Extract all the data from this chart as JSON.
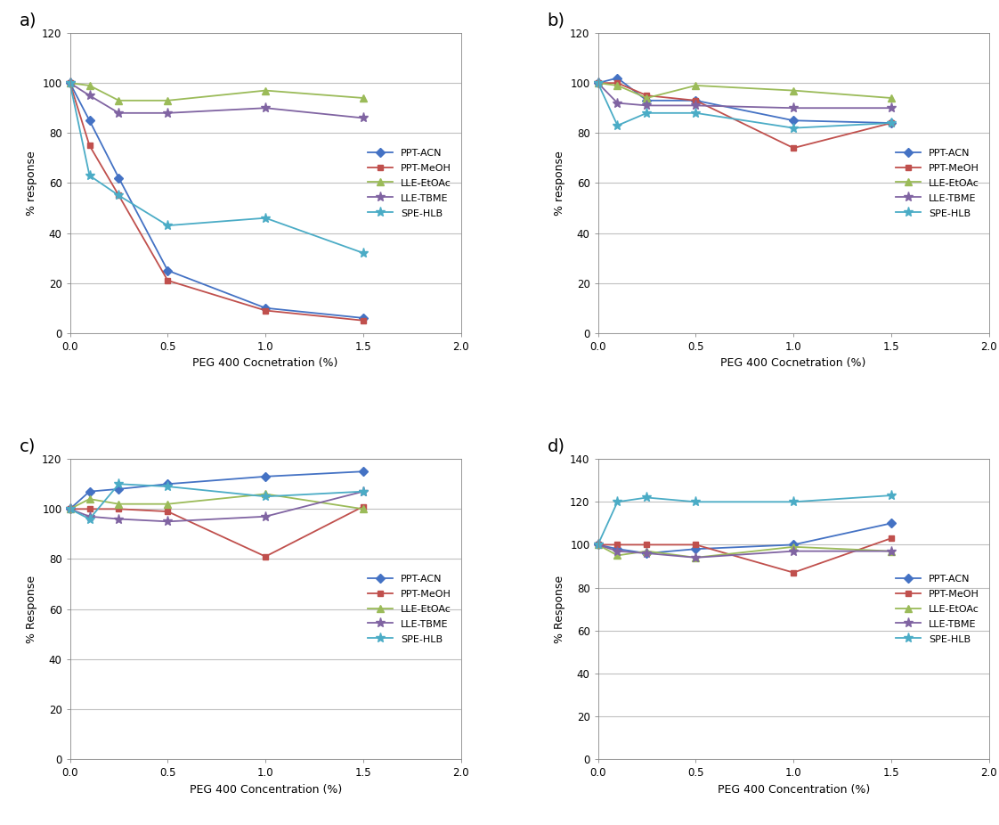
{
  "x": [
    0,
    0.1,
    0.25,
    0.5,
    1.0,
    1.5
  ],
  "series_labels": [
    "PPT-ACN",
    "PPT-MeOH",
    "LLE-EtOAc",
    "LLE-TBME",
    "SPE-HLB"
  ],
  "colors": [
    "#4472C4",
    "#C0504D",
    "#9BBB59",
    "#8064A2",
    "#4BACC6"
  ],
  "markers": [
    "D",
    "s",
    "^",
    "*",
    "*"
  ],
  "subplot_labels": [
    "a)",
    "b)",
    "c)",
    "d)"
  ],
  "a_data": {
    "PPT-ACN": [
      100,
      85,
      62,
      25,
      10,
      6
    ],
    "PPT-MeOH": [
      100,
      75,
      55,
      21,
      9,
      5
    ],
    "LLE-EtOAc": [
      100,
      99,
      93,
      93,
      97,
      94
    ],
    "LLE-TBME": [
      100,
      95,
      88,
      88,
      90,
      86
    ],
    "SPE-HLB": [
      100,
      63,
      55,
      43,
      46,
      32
    ]
  },
  "b_data": {
    "PPT-ACN": [
      100,
      102,
      93,
      93,
      85,
      84
    ],
    "PPT-MeOH": [
      100,
      100,
      95,
      93,
      74,
      84
    ],
    "LLE-EtOAc": [
      100,
      99,
      94,
      99,
      97,
      94
    ],
    "LLE-TBME": [
      100,
      92,
      91,
      91,
      90,
      90
    ],
    "SPE-HLB": [
      100,
      83,
      88,
      88,
      82,
      84
    ]
  },
  "c_data": {
    "PPT-ACN": [
      100,
      107,
      108,
      110,
      113,
      115
    ],
    "PPT-MeOH": [
      100,
      100,
      100,
      99,
      81,
      101
    ],
    "LLE-EtOAc": [
      100,
      104,
      102,
      102,
      106,
      100
    ],
    "LLE-TBME": [
      100,
      97,
      96,
      95,
      97,
      107
    ],
    "SPE-HLB": [
      100,
      96,
      110,
      109,
      105,
      107
    ]
  },
  "d_data": {
    "PPT-ACN": [
      100,
      98,
      96,
      98,
      100,
      110
    ],
    "PPT-MeOH": [
      100,
      100,
      100,
      100,
      87,
      103
    ],
    "LLE-EtOAc": [
      100,
      95,
      97,
      94,
      99,
      97
    ],
    "LLE-TBME": [
      100,
      97,
      96,
      94,
      97,
      97
    ],
    "SPE-HLB": [
      100,
      120,
      122,
      120,
      120,
      123
    ]
  },
  "ylim_a": [
    0,
    120
  ],
  "ylim_b": [
    0,
    120
  ],
  "ylim_c": [
    0,
    120
  ],
  "ylim_d": [
    0,
    140
  ],
  "yticks_a": [
    0,
    20,
    40,
    60,
    80,
    100,
    120
  ],
  "yticks_b": [
    0,
    20,
    40,
    60,
    80,
    100,
    120
  ],
  "yticks_c": [
    0,
    20,
    40,
    60,
    80,
    100,
    120
  ],
  "yticks_d": [
    0,
    20,
    40,
    60,
    80,
    100,
    120,
    140
  ],
  "xlim": [
    0,
    2
  ],
  "xticks": [
    0,
    0.5,
    1.0,
    1.5,
    2.0
  ],
  "xlabel_a": "PEG 400 Cocnetration (%)",
  "xlabel_b": "PEG 400 Cocnetration (%)",
  "xlabel_c": "PEG 400 Concentration (%)",
  "xlabel_d": "PEG 400 Concentration (%)",
  "ylabel_ab": "% response",
  "ylabel_cd": "% Response",
  "bg_color": "#FFFFFF",
  "grid_color": "#C0C0C0"
}
